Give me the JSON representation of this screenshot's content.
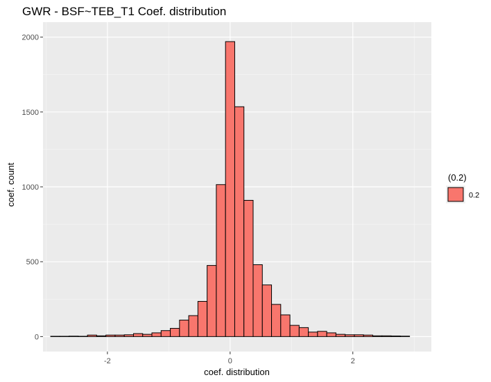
{
  "chart_data": {
    "type": "bar",
    "title": "GWR - BSF~TEB_T1 Coef. distribution",
    "xlabel": "coef. distribution",
    "ylabel": "coef. count",
    "xlim": [
      -3.05,
      3.28
    ],
    "ylim": [
      -100,
      2100
    ],
    "x_ticks": [
      -2,
      0,
      2
    ],
    "x_tick_labels": [
      "-2",
      "0",
      "2"
    ],
    "y_ticks": [
      0,
      500,
      1000,
      1500,
      2000
    ],
    "y_tick_labels": [
      "0",
      "500",
      "1000",
      "1500",
      "2000"
    ],
    "grid": true,
    "bin_width": 0.15,
    "bins_center": [
      -2.85,
      -2.7,
      -2.55,
      -2.4,
      -2.25,
      -2.1,
      -1.95,
      -1.8,
      -1.65,
      -1.5,
      -1.35,
      -1.2,
      -1.05,
      -0.9,
      -0.75,
      -0.6,
      -0.45,
      -0.3,
      -0.15,
      0.0,
      0.15,
      0.3,
      0.45,
      0.6,
      0.75,
      0.9,
      1.05,
      1.2,
      1.35,
      1.5,
      1.65,
      1.8,
      1.95,
      2.1,
      2.25,
      2.4,
      2.55,
      2.7,
      2.85
    ],
    "series": [
      {
        "name": "0.2",
        "color": "#f8766d",
        "values": [
          2,
          2,
          3,
          2,
          10,
          5,
          10,
          10,
          12,
          20,
          15,
          25,
          40,
          55,
          110,
          140,
          235,
          475,
          1015,
          1970,
          1535,
          910,
          480,
          345,
          215,
          145,
          75,
          60,
          30,
          35,
          25,
          15,
          12,
          12,
          10,
          5,
          5,
          4,
          3
        ]
      }
    ],
    "legend": {
      "title": "(0.2)",
      "position": "right",
      "entries": [
        "0.2"
      ]
    }
  }
}
